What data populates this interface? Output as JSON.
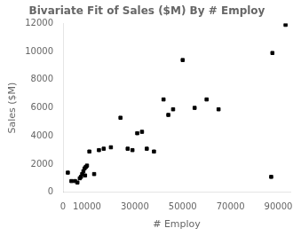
{
  "chart_data": {
    "type": "scatter",
    "title": "Bivariate Fit of Sales ($M) By # Employ",
    "xlabel": "# Employ",
    "ylabel": "Sales ($M)",
    "x": [
      2000,
      3500,
      5000,
      6000,
      7000,
      7500,
      8000,
      8500,
      9000,
      9200,
      9500,
      10000,
      11000,
      13000,
      15000,
      17000,
      20000,
      24000,
      27000,
      29000,
      31000,
      33000,
      35000,
      38000,
      42000,
      44000,
      46000,
      50000,
      55000,
      60000,
      65000,
      87000,
      87500,
      93000
    ],
    "values": [
      1400,
      800,
      800,
      700,
      1000,
      1100,
      1300,
      1500,
      1700,
      1200,
      1800,
      1900,
      2900,
      1300,
      3000,
      3100,
      3200,
      5300,
      3100,
      3000,
      4200,
      4300,
      3100,
      2900,
      6600,
      5500,
      5900,
      9400,
      6000,
      6600,
      5900,
      1100,
      9900,
      11900
    ],
    "color": "#000000",
    "marker": "square",
    "xlim": [
      0,
      95000
    ],
    "ylim": [
      0,
      12000
    ],
    "xticks": [
      0,
      10000,
      30000,
      50000,
      70000,
      90000
    ],
    "yticks": [
      0,
      2000,
      4000,
      6000,
      8000,
      10000,
      12000
    ],
    "grid": false
  }
}
